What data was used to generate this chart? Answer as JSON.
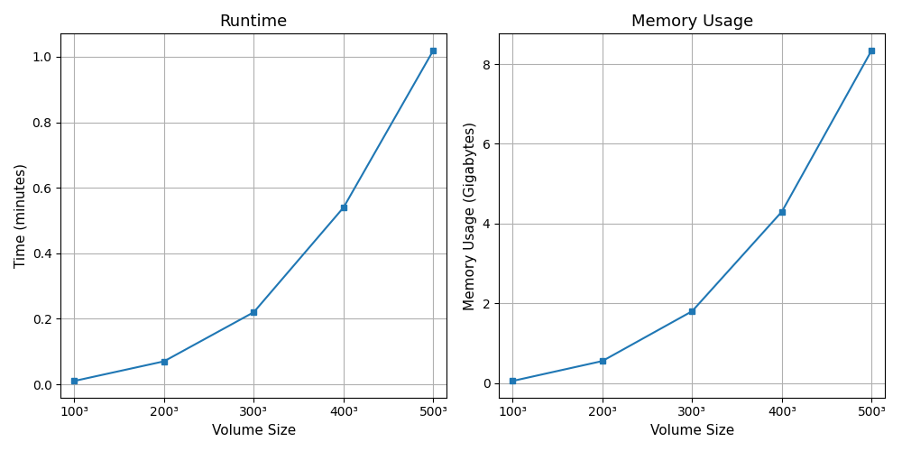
{
  "runtime_title": "Runtime",
  "memory_title": "Memory Usage",
  "xlabel": "Volume Size",
  "runtime_ylabel": "Time (minutes)",
  "memory_ylabel": "Memory Usage (Gigabytes)",
  "x_values": [
    100,
    200,
    300,
    400,
    500
  ],
  "x_labels": [
    "100³",
    "200³",
    "300³",
    "400³",
    "500³"
  ],
  "runtime_values": [
    0.01,
    0.07,
    0.22,
    0.54,
    1.02
  ],
  "memory_values": [
    0.05,
    0.55,
    1.8,
    4.3,
    8.35
  ],
  "line_color": "#1f77b4",
  "marker": "s",
  "markersize": 5,
  "linewidth": 1.5,
  "background_color": "#ffffff",
  "title_fontsize": 13,
  "label_fontsize": 11,
  "tick_fontsize": 10,
  "fig_width": 10.0,
  "fig_height": 5.0,
  "dpi": 100
}
